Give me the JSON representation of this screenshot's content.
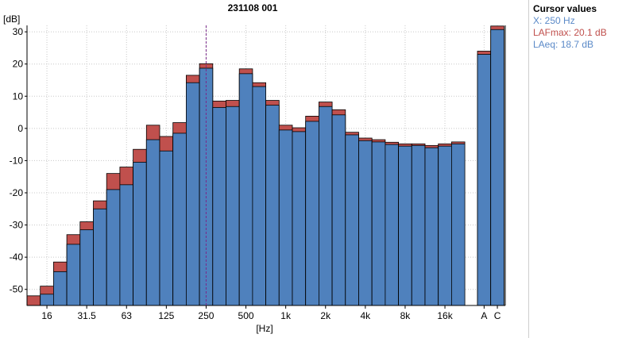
{
  "chart_data": {
    "type": "bar",
    "title": "231108 001",
    "ylabel": "[dB]",
    "xlabel": "[Hz]",
    "ylim": [
      -55,
      32
    ],
    "yticks": [
      30,
      20,
      10,
      0,
      -10,
      -20,
      -30,
      -40,
      -50
    ],
    "grid": true,
    "colors": {
      "LAFmax": "#c0504d",
      "LAeq": "#4f81bd"
    },
    "series_names": [
      "LAFmax",
      "LAeq"
    ],
    "bands": [
      {
        "label": "12.5",
        "laeq": -55,
        "lafmax": -52,
        "tick": ""
      },
      {
        "label": "16",
        "laeq": -51.5,
        "lafmax": -49,
        "tick": "16"
      },
      {
        "label": "20",
        "laeq": -44.5,
        "lafmax": -41.5,
        "tick": ""
      },
      {
        "label": "25",
        "laeq": -36,
        "lafmax": -33,
        "tick": ""
      },
      {
        "label": "31.5",
        "laeq": -31.5,
        "lafmax": -29,
        "tick": "31.5"
      },
      {
        "label": "40",
        "laeq": -25,
        "lafmax": -22.5,
        "tick": ""
      },
      {
        "label": "50",
        "laeq": -19,
        "lafmax": -14,
        "tick": ""
      },
      {
        "label": "63",
        "laeq": -17.5,
        "lafmax": -12,
        "tick": "63"
      },
      {
        "label": "80",
        "laeq": -10.5,
        "lafmax": -6.5,
        "tick": ""
      },
      {
        "label": "100",
        "laeq": -3.5,
        "lafmax": 1,
        "tick": ""
      },
      {
        "label": "125",
        "laeq": -7,
        "lafmax": -2.5,
        "tick": "125"
      },
      {
        "label": "160",
        "laeq": -1.5,
        "lafmax": 1.8,
        "tick": ""
      },
      {
        "label": "200",
        "laeq": 14.2,
        "lafmax": 16.5,
        "tick": ""
      },
      {
        "label": "250",
        "laeq": 18.7,
        "lafmax": 20.1,
        "tick": "250"
      },
      {
        "label": "315",
        "laeq": 6.5,
        "lafmax": 8.5,
        "tick": ""
      },
      {
        "label": "400",
        "laeq": 6.8,
        "lafmax": 8.7,
        "tick": ""
      },
      {
        "label": "500",
        "laeq": 17,
        "lafmax": 18.5,
        "tick": "500"
      },
      {
        "label": "630",
        "laeq": 13,
        "lafmax": 14.2,
        "tick": ""
      },
      {
        "label": "800",
        "laeq": 7.2,
        "lafmax": 8.7,
        "tick": ""
      },
      {
        "label": "1k",
        "laeq": -0.5,
        "lafmax": 1,
        "tick": "1k"
      },
      {
        "label": "1.25k",
        "laeq": -1,
        "lafmax": 0.2,
        "tick": ""
      },
      {
        "label": "1.6k",
        "laeq": 2.2,
        "lafmax": 3.8,
        "tick": ""
      },
      {
        "label": "2k",
        "laeq": 6.8,
        "lafmax": 8.2,
        "tick": "2k"
      },
      {
        "label": "2.5k",
        "laeq": 4.2,
        "lafmax": 5.8,
        "tick": ""
      },
      {
        "label": "3.15k",
        "laeq": -2,
        "lafmax": -1.2,
        "tick": ""
      },
      {
        "label": "4k",
        "laeq": -3.8,
        "lafmax": -3,
        "tick": "4k"
      },
      {
        "label": "5k",
        "laeq": -4.2,
        "lafmax": -3.5,
        "tick": ""
      },
      {
        "label": "6.3k",
        "laeq": -5,
        "lafmax": -4.3,
        "tick": ""
      },
      {
        "label": "8k",
        "laeq": -5.5,
        "lafmax": -4.8,
        "tick": "8k"
      },
      {
        "label": "10k",
        "laeq": -5.3,
        "lafmax": -4.8,
        "tick": ""
      },
      {
        "label": "12.5k",
        "laeq": -6,
        "lafmax": -5.3,
        "tick": ""
      },
      {
        "label": "16k",
        "laeq": -5.5,
        "lafmax": -4.8,
        "tick": "16k"
      },
      {
        "label": "20k",
        "laeq": -4.8,
        "lafmax": -4.2,
        "tick": ""
      }
    ],
    "totals": [
      {
        "label": "A",
        "laeq": 23,
        "lafmax": 24,
        "tick": "A"
      },
      {
        "label": "C",
        "laeq": 30.7,
        "lafmax": 31.8,
        "tick": "C"
      }
    ],
    "cursor": {
      "band": "250"
    }
  },
  "cursor_panel": {
    "title": "Cursor values",
    "x_text": "X: 250 Hz",
    "lafmax_text": "LAFmax: 20.1 dB",
    "laeq_text": "LAeq: 18.7 dB"
  }
}
